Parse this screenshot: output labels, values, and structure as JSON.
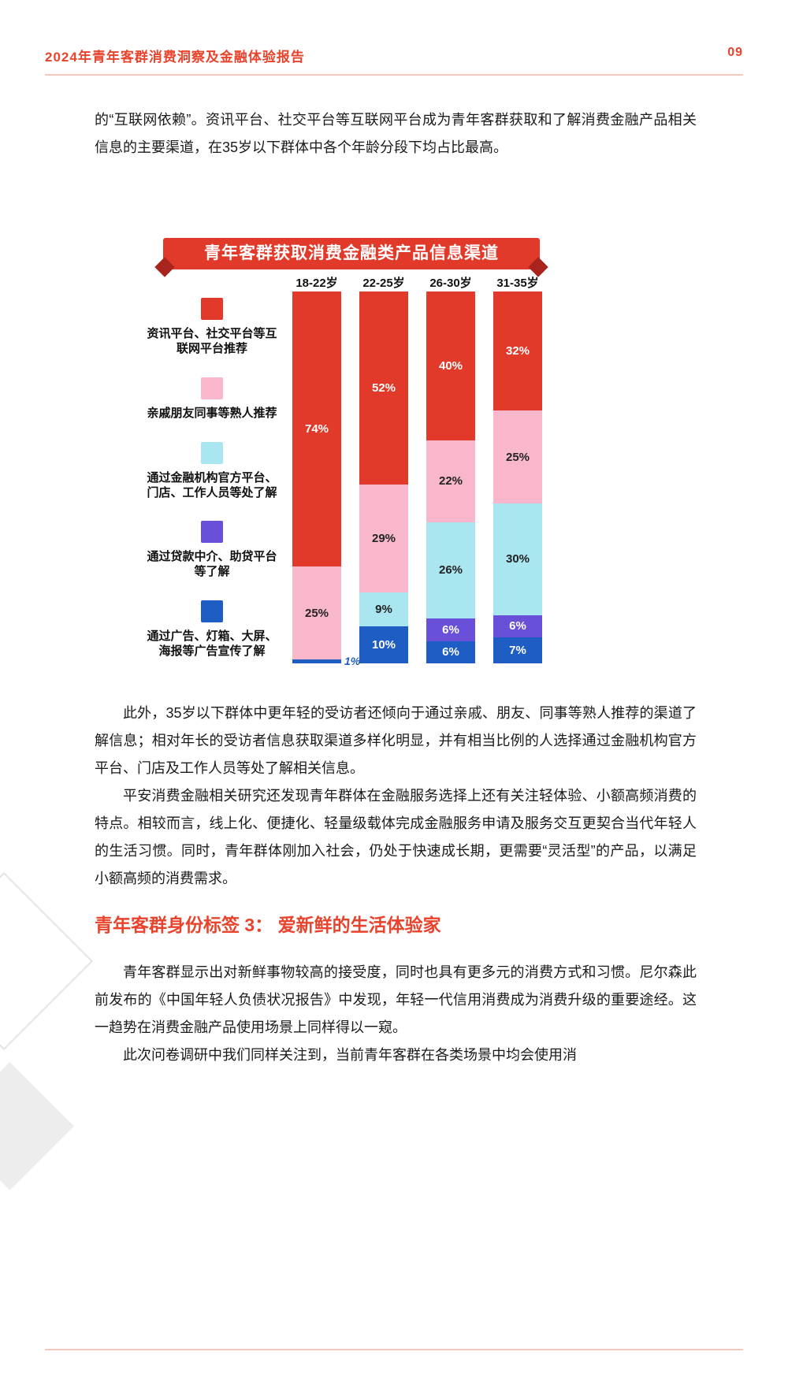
{
  "header": {
    "title": "2024年青年客群消费洞察及金融体验报告",
    "page_number": "09"
  },
  "paragraphs": {
    "intro": "的“互联网依赖”。资讯平台、社交平台等互联网平台成为青年客群获取和了解消费金融产品相关信息的主要渠道，在35岁以下群体中各个年龄分段下均占比最高。",
    "p2": "此外，35岁以下群体中更年轻的受访者还倾向于通过亲戚、朋友、同事等熟人推荐的渠道了解信息；相对年长的受访者信息获取渠道多样化明显，并有相当比例的人选择通过金融机构官方平台、门店及工作人员等处了解相关信息。",
    "p3": "平安消费金融相关研究还发现青年群体在金融服务选择上还有关注轻体验、小额高频消费的特点。相较而言，线上化、便捷化、轻量级载体完成金融服务申请及服务交互更契合当代年轻人的生活习惯。同时，青年群体刚加入社会，仍处于快速成长期，更需要“灵活型”的产品，以满足小额高频的消费需求。",
    "section_heading": "青年客群身份标签 3： 爱新鲜的生活体验家",
    "p4": "青年客群显示出对新鲜事物较高的接受度，同时也具有更多元的消费方式和习惯。尼尔森此前发布的《中国年轻人负债状况报告》中发现，年轻一代信用消费成为消费升级的重要途经。这一趋势在消费金融产品使用场景上同样得以一窥。",
    "p5": "此次问卷调研中我们同样关注到，当前青年客群在各类场景中均会使用消"
  },
  "chart_data": {
    "type": "bar",
    "stacked": true,
    "title": "青年客群获取消费金融类产品信息渠道",
    "categories": [
      "18-22岁",
      "22-25岁",
      "26-30岁",
      "31-35岁"
    ],
    "series": [
      {
        "name": "资讯平台、社交平台等互联网平台推荐",
        "color": "#e23a2a",
        "label_color": "#ffffff",
        "values": [
          74,
          52,
          40,
          32
        ]
      },
      {
        "name": "亲戚朋友同事等熟人推荐",
        "color": "#f8b7cb",
        "label_color": "#222222",
        "values": [
          25,
          29,
          22,
          25
        ]
      },
      {
        "name": "通过金融机构官方平台、门店、工作人员等处了解",
        "color": "#a9e6ef",
        "label_color": "#222222",
        "values": [
          0,
          9,
          26,
          30
        ]
      },
      {
        "name": "通过贷款中介、助贷平台等了解",
        "color": "#6a4fd8",
        "label_color": "#ffffff",
        "values": [
          0,
          0,
          6,
          6
        ]
      },
      {
        "name": "通过广告、灯箱、大屏、海报等广告宣传了解",
        "color": "#1d5dc4",
        "label_color": "#ffffff",
        "values": [
          1,
          10,
          6,
          7
        ]
      }
    ],
    "value_suffix": "%",
    "ylim": [
      0,
      100
    ],
    "legend_position": "left",
    "accent_color": "#e8432c"
  }
}
